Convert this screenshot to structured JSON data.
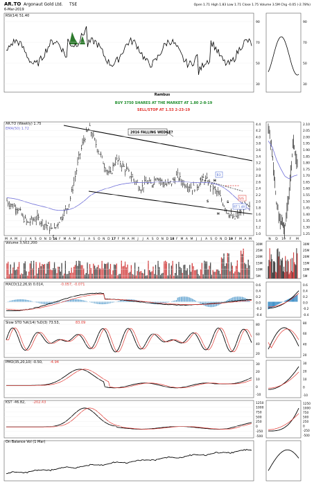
{
  "header": {
    "symbol": "AR.TO",
    "name": "Argonaut Gold Ltd.",
    "exchange": "TSE",
    "date": "6-Mar-2019",
    "quote": "Open 1.71  High 1.83  Low 1.71  Close 1.75  Volume 3.5M  Chg -0.05 (-2.78%)"
  },
  "colors": {
    "price": "#000000",
    "ema": "#6d6dd8",
    "signal_red": "#e0322c",
    "green_text": "#1c8c2a",
    "hist_blue": "#2f86c2",
    "vol_red": "#d33d3d",
    "vol_black": "#444444",
    "grid": "#e8e8e8",
    "rsi_green": "#2d7a2d"
  },
  "annotations": {
    "author": "Rambus",
    "buy": "BUY 3750 SHARES AT THE MARKET AT 1.80 2-8-19",
    "stop": "SELL/STOP AT 1.53 2-23-19",
    "wedge": "2016 FALLING WEDGE?",
    "b3": "B3",
    "h_left": "H",
    "h_bottom": "H",
    "s1": "S",
    "s2": "S",
    "ss": "S/S",
    "bt": "BT 1.48"
  },
  "panels": {
    "rsi": {
      "label": "RSI(14) 51.40",
      "levels": [
        "90",
        "70",
        "50",
        "30"
      ]
    },
    "price": {
      "label": "AR.TO (Weekly) 1.75",
      "ema_label": "EMA(50) 1.72",
      "ticks": [
        "4.4",
        "4.2",
        "4.0",
        "3.8",
        "3.6",
        "3.4",
        "3.2",
        "3.0",
        "2.8",
        "2.6",
        "2.4",
        "2.2",
        "2.0",
        "1.8",
        "1.6",
        "1.4",
        "1.2",
        "1.0"
      ],
      "right_ticks": [
        "2.10",
        "2.05",
        "2.00",
        "1.95",
        "1.90",
        "1.85",
        "1.80",
        "1.75",
        "1.70",
        "1.65",
        "1.60",
        "1.55",
        "1.50",
        "1.45",
        "1.40",
        "1.35",
        "1.30",
        "1.25"
      ]
    },
    "volume": {
      "label": "Volume 3,502,200",
      "ticks": [
        "30M",
        "25M",
        "20M",
        "15M",
        "10M",
        "5M"
      ]
    },
    "macd": {
      "label": "MACD(12,26,9) 0.014, ",
      "label_b": "-0.057, -0.071",
      "ticks": [
        "0.6",
        "0.4",
        "0.2",
        "0.0",
        "-0.2",
        "-0.4"
      ]
    },
    "sto": {
      "label": "Slow STO %K(14) %D(3) 73.53, ",
      "label_b": "83.09",
      "ticks": [
        "80",
        "60",
        "40",
        "20"
      ]
    },
    "pmo": {
      "label": "PMO(35,20,10) -0.50, ",
      "label_b": "-4.94",
      "ticks": [
        "30",
        "20",
        "10",
        "0",
        "-10"
      ]
    },
    "kst": {
      "label": "KST -46.82, ",
      "label_b": "-202.43",
      "ticks": [
        "1250",
        "1000",
        "750",
        "500",
        "250",
        "0",
        "-250",
        "-500"
      ]
    },
    "obv": {
      "label": "On Balance Vol (1 Mar)"
    }
  },
  "axis_months": [
    "M",
    "A",
    "M",
    "J",
    "J",
    "A",
    "S",
    "O",
    "N",
    "D",
    "16",
    "F",
    "M",
    "A",
    "M",
    "J",
    "J",
    "A",
    "S",
    "O",
    "N",
    "D",
    "17",
    "F",
    "M",
    "A",
    "M",
    "J",
    "J",
    "A",
    "S",
    "O",
    "N",
    "D",
    "18",
    "F",
    "M",
    "A",
    "M",
    "J",
    "J",
    "A",
    "S",
    "O",
    "N",
    "D",
    "19",
    "F",
    "M",
    "A",
    "M"
  ],
  "right_axis_months": [
    "N",
    "D",
    "19",
    "F",
    "M"
  ],
  "chart_data": {
    "type": "line",
    "title": "AR.TO (Weekly)",
    "x": [
      "2015-04",
      "2015-05",
      "2015-06",
      "2015-07",
      "2015-08",
      "2015-09",
      "2015-10",
      "2015-11",
      "2015-12",
      "2016-01",
      "2016-02",
      "2016-03",
      "2016-04",
      "2016-05",
      "2016-06",
      "2016-07",
      "2016-08",
      "2016-09",
      "2016-10",
      "2016-11",
      "2016-12",
      "2017-01",
      "2017-02",
      "2017-03",
      "2017-04",
      "2017-05",
      "2017-06",
      "2017-07",
      "2017-08",
      "2017-09",
      "2017-10",
      "2017-11",
      "2017-12",
      "2018-01",
      "2018-02",
      "2018-03",
      "2018-04",
      "2018-05",
      "2018-06",
      "2018-07",
      "2018-08",
      "2018-09",
      "2018-10",
      "2018-11",
      "2018-12",
      "2019-01",
      "2019-02",
      "2019-03"
    ],
    "series": [
      {
        "name": "AR.TO",
        "values": [
          2.0,
          1.85,
          1.8,
          1.5,
          1.3,
          1.4,
          1.45,
          1.3,
          1.2,
          1.0,
          1.35,
          1.6,
          1.9,
          2.6,
          3.4,
          4.0,
          4.3,
          3.9,
          3.5,
          3.1,
          2.8,
          3.3,
          3.2,
          3.0,
          2.8,
          2.6,
          2.4,
          2.6,
          2.5,
          2.8,
          2.6,
          2.5,
          2.6,
          2.8,
          2.6,
          2.5,
          2.4,
          2.5,
          2.7,
          2.6,
          2.4,
          2.2,
          1.9,
          1.6,
          1.4,
          1.6,
          1.85,
          1.75
        ]
      },
      {
        "name": "EMA(50)",
        "values": [
          2.1,
          2.08,
          2.05,
          2.0,
          1.95,
          1.9,
          1.86,
          1.82,
          1.78,
          1.72,
          1.7,
          1.7,
          1.72,
          1.78,
          1.88,
          2.0,
          2.15,
          2.25,
          2.32,
          2.38,
          2.42,
          2.48,
          2.52,
          2.55,
          2.57,
          2.58,
          2.58,
          2.58,
          2.58,
          2.6,
          2.6,
          2.6,
          2.6,
          2.61,
          2.61,
          2.6,
          2.58,
          2.58,
          2.58,
          2.58,
          2.55,
          2.5,
          2.42,
          2.3,
          2.15,
          2.0,
          1.85,
          1.72
        ]
      }
    ],
    "ylim": [
      0.9,
      4.5
    ],
    "legend": "top-left",
    "grid": true
  }
}
